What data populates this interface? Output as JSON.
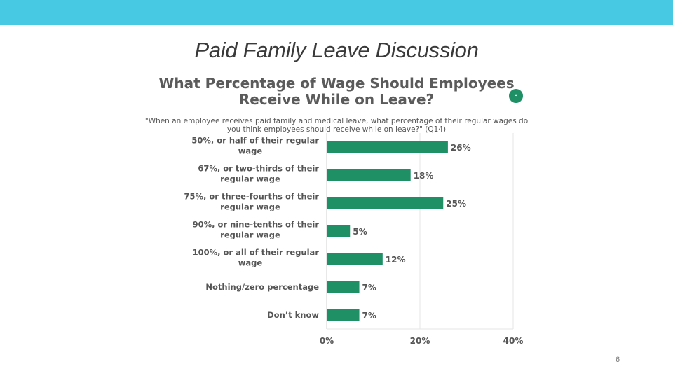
{
  "slide": {
    "title": "Paid Family Leave Discussion",
    "page_number": "6"
  },
  "colors": {
    "top_bar": "#48c9e3",
    "bar_fill": "#1f8f66",
    "text": "#555555"
  },
  "chart_data": {
    "type": "bar",
    "orientation": "horizontal",
    "title": "What Percentage of Wage Should Employees Receive While on Leave?",
    "badge": "8",
    "subtitle": "\"When an employee receives paid family and medical leave, what percentage of their regular wages do you think employees should receive while on leave?\" (Q14)",
    "categories": [
      [
        "50%, or half of their regular",
        "wage"
      ],
      [
        "67%, or two-thirds of their",
        "regular wage"
      ],
      [
        "75%, or three-fourths of their",
        "regular wage"
      ],
      [
        "90%, or nine-tenths of their",
        "regular wage"
      ],
      [
        "100%, or all of their regular",
        "wage"
      ],
      [
        "Nothing/zero percentage"
      ],
      [
        "Don’t know"
      ]
    ],
    "values": [
      26,
      18,
      25,
      5,
      12,
      7,
      7
    ],
    "value_labels": [
      "26%",
      "18%",
      "25%",
      "5%",
      "12%",
      "7%",
      "7%"
    ],
    "xlim": [
      0,
      40
    ],
    "xticks": [
      0,
      20,
      40
    ],
    "xtick_labels": [
      "0%",
      "20%",
      "40%"
    ],
    "grid": "vertical",
    "xlabel": "",
    "ylabel": ""
  }
}
